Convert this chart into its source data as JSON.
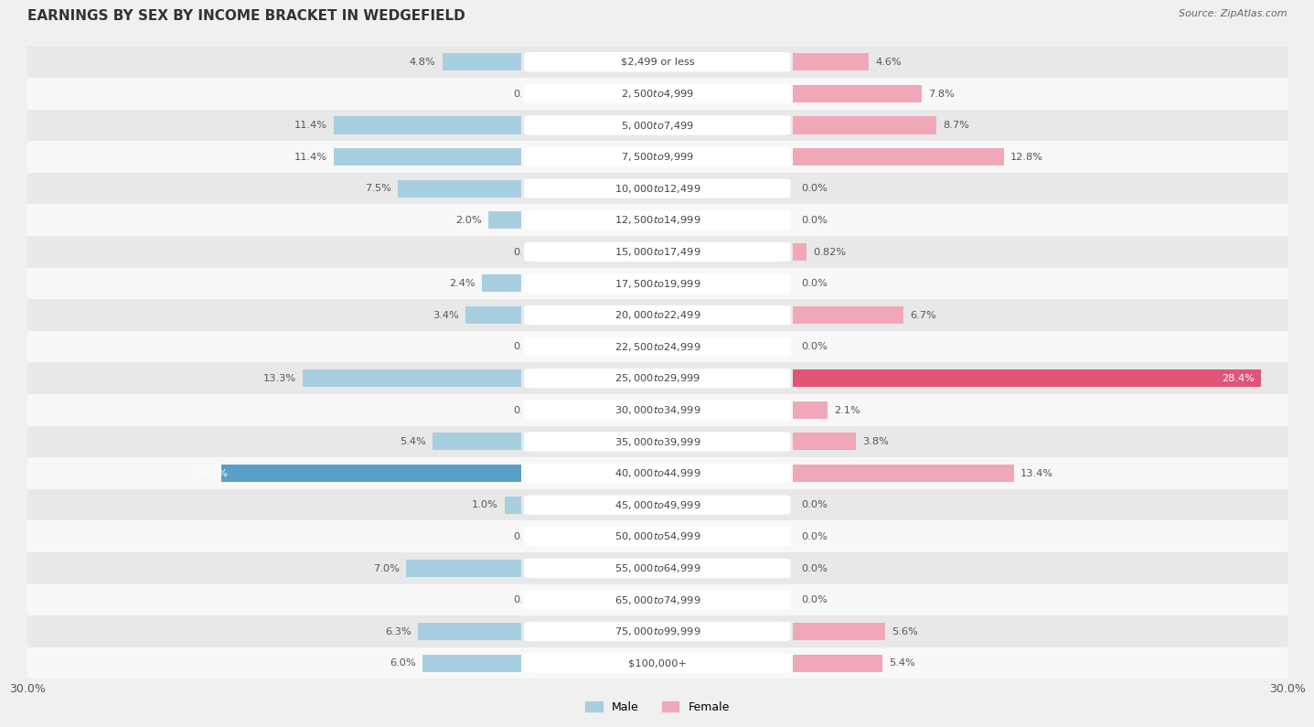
{
  "title": "EARNINGS BY SEX BY INCOME BRACKET IN WEDGEFIELD",
  "source": "Source: ZipAtlas.com",
  "categories": [
    "$2,499 or less",
    "$2,500 to $4,999",
    "$5,000 to $7,499",
    "$7,500 to $9,999",
    "$10,000 to $12,499",
    "$12,500 to $14,999",
    "$15,000 to $17,499",
    "$17,500 to $19,999",
    "$20,000 to $22,499",
    "$22,500 to $24,999",
    "$25,000 to $29,999",
    "$30,000 to $34,999",
    "$35,000 to $39,999",
    "$40,000 to $44,999",
    "$45,000 to $49,999",
    "$50,000 to $54,999",
    "$55,000 to $64,999",
    "$65,000 to $74,999",
    "$75,000 to $99,999",
    "$100,000+"
  ],
  "male": [
    4.8,
    0.0,
    11.4,
    11.4,
    7.5,
    2.0,
    0.0,
    2.4,
    3.4,
    0.0,
    13.3,
    0.0,
    5.4,
    18.2,
    1.0,
    0.0,
    7.0,
    0.0,
    6.3,
    6.0
  ],
  "female": [
    4.6,
    7.8,
    8.7,
    12.8,
    0.0,
    0.0,
    0.82,
    0.0,
    6.7,
    0.0,
    28.4,
    2.1,
    3.8,
    13.4,
    0.0,
    0.0,
    0.0,
    0.0,
    5.6,
    5.4
  ],
  "male_color": "#a8cfe0",
  "female_color": "#f0a8b8",
  "male_highlight_color": "#5a9fc8",
  "female_highlight_color": "#e05575",
  "xlim": 30.0,
  "title_fontsize": 11,
  "tick_fontsize": 9,
  "bar_height": 0.55,
  "bg_color": "#f0f0f0",
  "row_even_color": "#e8e8e8",
  "row_odd_color": "#f8f8f8",
  "label_box_color": "#ffffff",
  "cat_fontsize": 8.2,
  "val_fontsize": 8.2
}
